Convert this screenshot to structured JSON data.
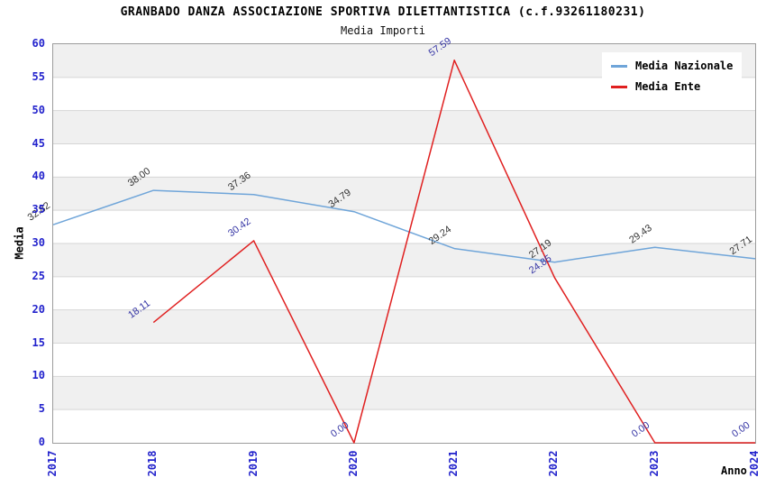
{
  "header": {
    "title": "GRANBADO DANZA ASSOCIAZIONE SPORTIVA DILETTANTISTICA (c.f.93261180231)",
    "subtitle": "Media Importi"
  },
  "axes": {
    "ylabel": "Media",
    "xlabel": "Anno"
  },
  "colors": {
    "tick_label_blue": "#2222cc",
    "grid_line": "#d6d6d6",
    "band_gray": "#f0f0f0",
    "plot_border": "#9c9c9c"
  },
  "chart_data": {
    "type": "line",
    "title": "GRANBADO DANZA ASSOCIAZIONE SPORTIVA DILETTANTISTICA (c.f.93261180231)",
    "subtitle": "Media Importi",
    "xlabel": "Anno",
    "ylabel": "Media",
    "x": [
      "2017",
      "2018",
      "2019",
      "2020",
      "2021",
      "2022",
      "2023",
      "2024"
    ],
    "series": [
      {
        "name": "Media Nazionale",
        "color": "#6fa5d9",
        "label_color": "#333333",
        "values": [
          32.82,
          38.0,
          37.36,
          34.79,
          29.24,
          27.19,
          29.43,
          27.71
        ]
      },
      {
        "name": "Media Ente",
        "color": "#e02020",
        "label_color": "#3434a4",
        "values": [
          null,
          18.11,
          30.42,
          0.0,
          57.59,
          24.85,
          0.0,
          0.0
        ]
      }
    ],
    "ylim": [
      0,
      60
    ],
    "ytick_step": 5,
    "yticks": [
      0,
      5,
      10,
      15,
      20,
      25,
      30,
      35,
      40,
      45,
      50,
      55,
      60
    ],
    "grid": true,
    "bands_alternating": true,
    "legend_position": "top-right",
    "axis_tick_color": "#2222cc",
    "point_label_format": "0.00"
  }
}
